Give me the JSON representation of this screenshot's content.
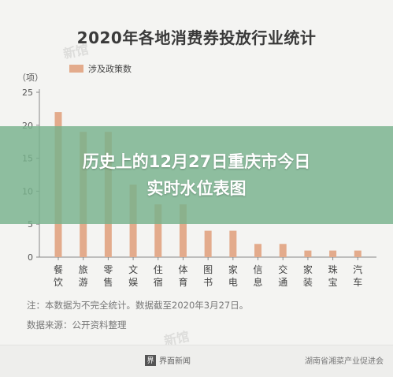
{
  "chart_data": {
    "type": "bar",
    "title": "2020年各地消费券投放行业统计",
    "ylabel": "（项）",
    "ylim": [
      0,
      25
    ],
    "yticks": [
      0,
      5,
      10,
      15,
      20,
      25
    ],
    "grid": false,
    "legend_position": "top-left",
    "series": [
      {
        "name": "涉及政策数",
        "color": "#e3ab8c",
        "values": [
          22,
          19,
          19,
          11,
          8,
          8,
          4,
          4,
          2,
          2,
          1,
          1,
          1
        ]
      }
    ],
    "categories": [
      "餐饮",
      "旅游",
      "零售",
      "文娱",
      "住宿",
      "体育",
      "图书",
      "家电",
      "信息",
      "交通",
      "家装",
      "珠宝",
      "汽车"
    ],
    "category_lines": [
      [
        "餐",
        "饮"
      ],
      [
        "旅",
        "游"
      ],
      [
        "零",
        "售"
      ],
      [
        "文",
        "娱"
      ],
      [
        "住",
        "宿"
      ],
      [
        "体",
        "育"
      ],
      [
        "图",
        "书"
      ],
      [
        "家",
        "电"
      ],
      [
        "信",
        "息"
      ],
      [
        "交",
        "通"
      ],
      [
        "家",
        "装"
      ],
      [
        "珠",
        "宝"
      ],
      [
        "汽",
        "车"
      ]
    ]
  },
  "overlay": {
    "line1": "历史上的12月27日重庆市今日",
    "line2": "实时水位表图"
  },
  "notes": {
    "note1": "注：本数据为不完全统计。数据截至2020年3月27日。",
    "note2": "数据来源：公开资料整理"
  },
  "footer": {
    "source_name": "界面新闻",
    "brand": "湖南省湘菜产业促进会"
  },
  "colors": {
    "bar": "#e3ab8c",
    "overlay": "#78b28c"
  }
}
